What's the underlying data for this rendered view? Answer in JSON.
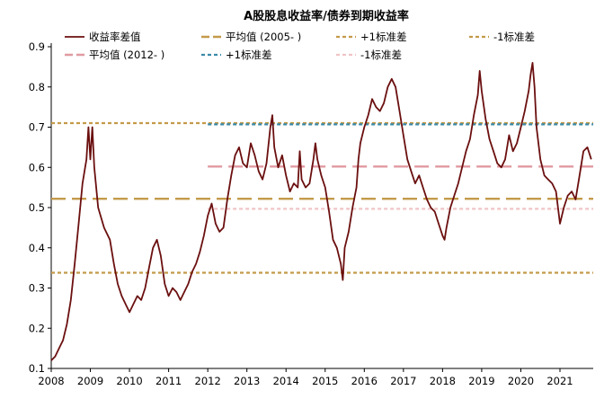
{
  "chart_data": {
    "type": "line",
    "title": "A股股息收益率/债券到期收益率",
    "xlabel": "",
    "ylabel": "",
    "xlim": [
      2008.0,
      2021.85
    ],
    "ylim": [
      0.1,
      0.9
    ],
    "x_ticks": [
      "2008",
      "2009",
      "2010",
      "2011",
      "2012",
      "2013",
      "2014",
      "2015",
      "2016",
      "2017",
      "2018",
      "2019",
      "2020",
      "2021"
    ],
    "y_ticks": [
      "0.1",
      "0.2",
      "0.3",
      "0.4",
      "0.5",
      "0.6",
      "0.7",
      "0.8",
      "0.9"
    ],
    "grid": false,
    "legend_position": "top",
    "series": [
      {
        "name": "收益率差值",
        "color": "#6b0f0f",
        "style": "solid",
        "points": [
          [
            2008.0,
            0.12
          ],
          [
            2008.1,
            0.13
          ],
          [
            2008.2,
            0.15
          ],
          [
            2008.3,
            0.17
          ],
          [
            2008.4,
            0.21
          ],
          [
            2008.5,
            0.27
          ],
          [
            2008.6,
            0.36
          ],
          [
            2008.7,
            0.46
          ],
          [
            2008.8,
            0.56
          ],
          [
            2008.9,
            0.62
          ],
          [
            2008.95,
            0.7
          ],
          [
            2009.0,
            0.62
          ],
          [
            2009.05,
            0.7
          ],
          [
            2009.1,
            0.6
          ],
          [
            2009.2,
            0.5
          ],
          [
            2009.35,
            0.45
          ],
          [
            2009.5,
            0.42
          ],
          [
            2009.6,
            0.36
          ],
          [
            2009.7,
            0.31
          ],
          [
            2009.8,
            0.28
          ],
          [
            2009.9,
            0.26
          ],
          [
            2010.0,
            0.24
          ],
          [
            2010.1,
            0.26
          ],
          [
            2010.2,
            0.28
          ],
          [
            2010.3,
            0.27
          ],
          [
            2010.4,
            0.3
          ],
          [
            2010.5,
            0.35
          ],
          [
            2010.6,
            0.4
          ],
          [
            2010.7,
            0.42
          ],
          [
            2010.8,
            0.38
          ],
          [
            2010.9,
            0.31
          ],
          [
            2011.0,
            0.28
          ],
          [
            2011.1,
            0.3
          ],
          [
            2011.2,
            0.29
          ],
          [
            2011.3,
            0.27
          ],
          [
            2011.4,
            0.29
          ],
          [
            2011.5,
            0.31
          ],
          [
            2011.6,
            0.34
          ],
          [
            2011.7,
            0.36
          ],
          [
            2011.8,
            0.39
          ],
          [
            2011.9,
            0.43
          ],
          [
            2012.0,
            0.48
          ],
          [
            2012.1,
            0.51
          ],
          [
            2012.2,
            0.46
          ],
          [
            2012.3,
            0.44
          ],
          [
            2012.4,
            0.45
          ],
          [
            2012.5,
            0.52
          ],
          [
            2012.6,
            0.58
          ],
          [
            2012.7,
            0.63
          ],
          [
            2012.8,
            0.65
          ],
          [
            2012.9,
            0.61
          ],
          [
            2013.0,
            0.6
          ],
          [
            2013.1,
            0.66
          ],
          [
            2013.2,
            0.63
          ],
          [
            2013.3,
            0.59
          ],
          [
            2013.4,
            0.57
          ],
          [
            2013.5,
            0.61
          ],
          [
            2013.6,
            0.7
          ],
          [
            2013.65,
            0.73
          ],
          [
            2013.7,
            0.65
          ],
          [
            2013.8,
            0.6
          ],
          [
            2013.9,
            0.63
          ],
          [
            2014.0,
            0.58
          ],
          [
            2014.1,
            0.54
          ],
          [
            2014.2,
            0.56
          ],
          [
            2014.3,
            0.55
          ],
          [
            2014.35,
            0.64
          ],
          [
            2014.4,
            0.57
          ],
          [
            2014.5,
            0.55
          ],
          [
            2014.6,
            0.56
          ],
          [
            2014.7,
            0.62
          ],
          [
            2014.75,
            0.66
          ],
          [
            2014.8,
            0.62
          ],
          [
            2014.9,
            0.58
          ],
          [
            2015.0,
            0.55
          ],
          [
            2015.1,
            0.49
          ],
          [
            2015.2,
            0.42
          ],
          [
            2015.3,
            0.4
          ],
          [
            2015.4,
            0.36
          ],
          [
            2015.45,
            0.32
          ],
          [
            2015.5,
            0.4
          ],
          [
            2015.6,
            0.44
          ],
          [
            2015.7,
            0.5
          ],
          [
            2015.8,
            0.55
          ],
          [
            2015.85,
            0.62
          ],
          [
            2015.9,
            0.66
          ],
          [
            2016.0,
            0.7
          ],
          [
            2016.1,
            0.73
          ],
          [
            2016.2,
            0.77
          ],
          [
            2016.3,
            0.75
          ],
          [
            2016.4,
            0.74
          ],
          [
            2016.5,
            0.76
          ],
          [
            2016.6,
            0.8
          ],
          [
            2016.7,
            0.82
          ],
          [
            2016.8,
            0.8
          ],
          [
            2016.9,
            0.74
          ],
          [
            2017.0,
            0.68
          ],
          [
            2017.1,
            0.62
          ],
          [
            2017.2,
            0.59
          ],
          [
            2017.3,
            0.56
          ],
          [
            2017.4,
            0.58
          ],
          [
            2017.5,
            0.55
          ],
          [
            2017.6,
            0.52
          ],
          [
            2017.7,
            0.5
          ],
          [
            2017.8,
            0.49
          ],
          [
            2017.9,
            0.46
          ],
          [
            2018.0,
            0.43
          ],
          [
            2018.05,
            0.42
          ],
          [
            2018.1,
            0.45
          ],
          [
            2018.2,
            0.5
          ],
          [
            2018.3,
            0.53
          ],
          [
            2018.4,
            0.56
          ],
          [
            2018.5,
            0.6
          ],
          [
            2018.6,
            0.64
          ],
          [
            2018.7,
            0.67
          ],
          [
            2018.8,
            0.73
          ],
          [
            2018.9,
            0.78
          ],
          [
            2018.95,
            0.84
          ],
          [
            2019.0,
            0.79
          ],
          [
            2019.1,
            0.72
          ],
          [
            2019.2,
            0.67
          ],
          [
            2019.3,
            0.64
          ],
          [
            2019.4,
            0.61
          ],
          [
            2019.5,
            0.6
          ],
          [
            2019.6,
            0.62
          ],
          [
            2019.7,
            0.68
          ],
          [
            2019.8,
            0.64
          ],
          [
            2019.9,
            0.66
          ],
          [
            2020.0,
            0.7
          ],
          [
            2020.1,
            0.74
          ],
          [
            2020.2,
            0.79
          ],
          [
            2020.25,
            0.83
          ],
          [
            2020.3,
            0.86
          ],
          [
            2020.35,
            0.8
          ],
          [
            2020.4,
            0.7
          ],
          [
            2020.5,
            0.62
          ],
          [
            2020.6,
            0.58
          ],
          [
            2020.7,
            0.57
          ],
          [
            2020.8,
            0.56
          ],
          [
            2020.9,
            0.54
          ],
          [
            2021.0,
            0.46
          ],
          [
            2021.1,
            0.5
          ],
          [
            2021.2,
            0.53
          ],
          [
            2021.3,
            0.54
          ],
          [
            2021.4,
            0.52
          ],
          [
            2021.5,
            0.58
          ],
          [
            2021.6,
            0.64
          ],
          [
            2021.7,
            0.65
          ],
          [
            2021.8,
            0.62
          ]
        ]
      },
      {
        "name": "平均值 (2005- )",
        "color": "#c49a4a",
        "style": "long-dash",
        "y": 0.522,
        "x_range": [
          2008.0,
          2021.85
        ]
      },
      {
        "name": "+1标准差",
        "color": "#c49a4a",
        "style": "short-dash",
        "y": 0.71,
        "x_range": [
          2008.0,
          2021.85
        ]
      },
      {
        "name": "-1标准差",
        "color": "#c49a4a",
        "style": "short-dash",
        "y": 0.338,
        "x_range": [
          2008.0,
          2021.85
        ]
      },
      {
        "name": "平均值 (2012- )",
        "color": "#e09aa0",
        "style": "long-dash",
        "y": 0.602,
        "x_range": [
          2012.0,
          2021.85
        ]
      },
      {
        "name": "+1标准差",
        "color": "#3a8aa8",
        "style": "short-dash",
        "y": 0.707,
        "x_range": [
          2012.0,
          2021.85
        ]
      },
      {
        "name": "-1标准差",
        "color": "#f0c4c6",
        "style": "short-dash",
        "y": 0.497,
        "x_range": [
          2012.0,
          2021.85
        ]
      }
    ]
  }
}
